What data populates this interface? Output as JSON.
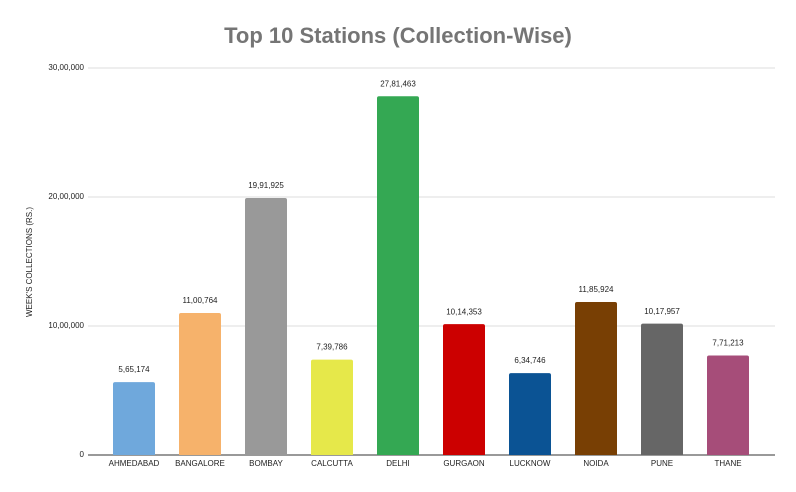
{
  "chart_data": {
    "type": "bar",
    "title": "Top 10 Stations (Collection-Wise)",
    "y_label": "WEEK'S COLLECTIONS (RS.)",
    "categories": [
      "AHMEDABAD",
      "BANGALORE",
      "BOMBAY",
      "CALCUTTA",
      "DELHI",
      "GURGAON",
      "LUCKNOW",
      "NOIDA",
      "PUNE",
      "THANE"
    ],
    "values": [
      565174,
      1100764,
      1991925,
      739786,
      2781463,
      1014353,
      634746,
      1185924,
      1017957,
      771213
    ],
    "value_labels": [
      "5,65,174",
      "11,00,764",
      "19,91,925",
      "7,39,786",
      "27,81,463",
      "10,14,353",
      "6,34,746",
      "11,85,924",
      "10,17,957",
      "7,71,213"
    ],
    "colors": [
      "#6fa8dc",
      "#f6b26b",
      "#999999",
      "#e6e84a",
      "#34a853",
      "#cc0000",
      "#0b5394",
      "#783f04",
      "#666666",
      "#a64d79"
    ],
    "ylim": [
      0,
      3000000
    ],
    "yticks": [
      0,
      {
        "value": 1000000,
        "label": "10,00,000"
      },
      {
        "value": 2000000,
        "label": "20,00,000"
      },
      {
        "value": 3000000,
        "label": "30,00,000"
      }
    ],
    "grid": true
  }
}
